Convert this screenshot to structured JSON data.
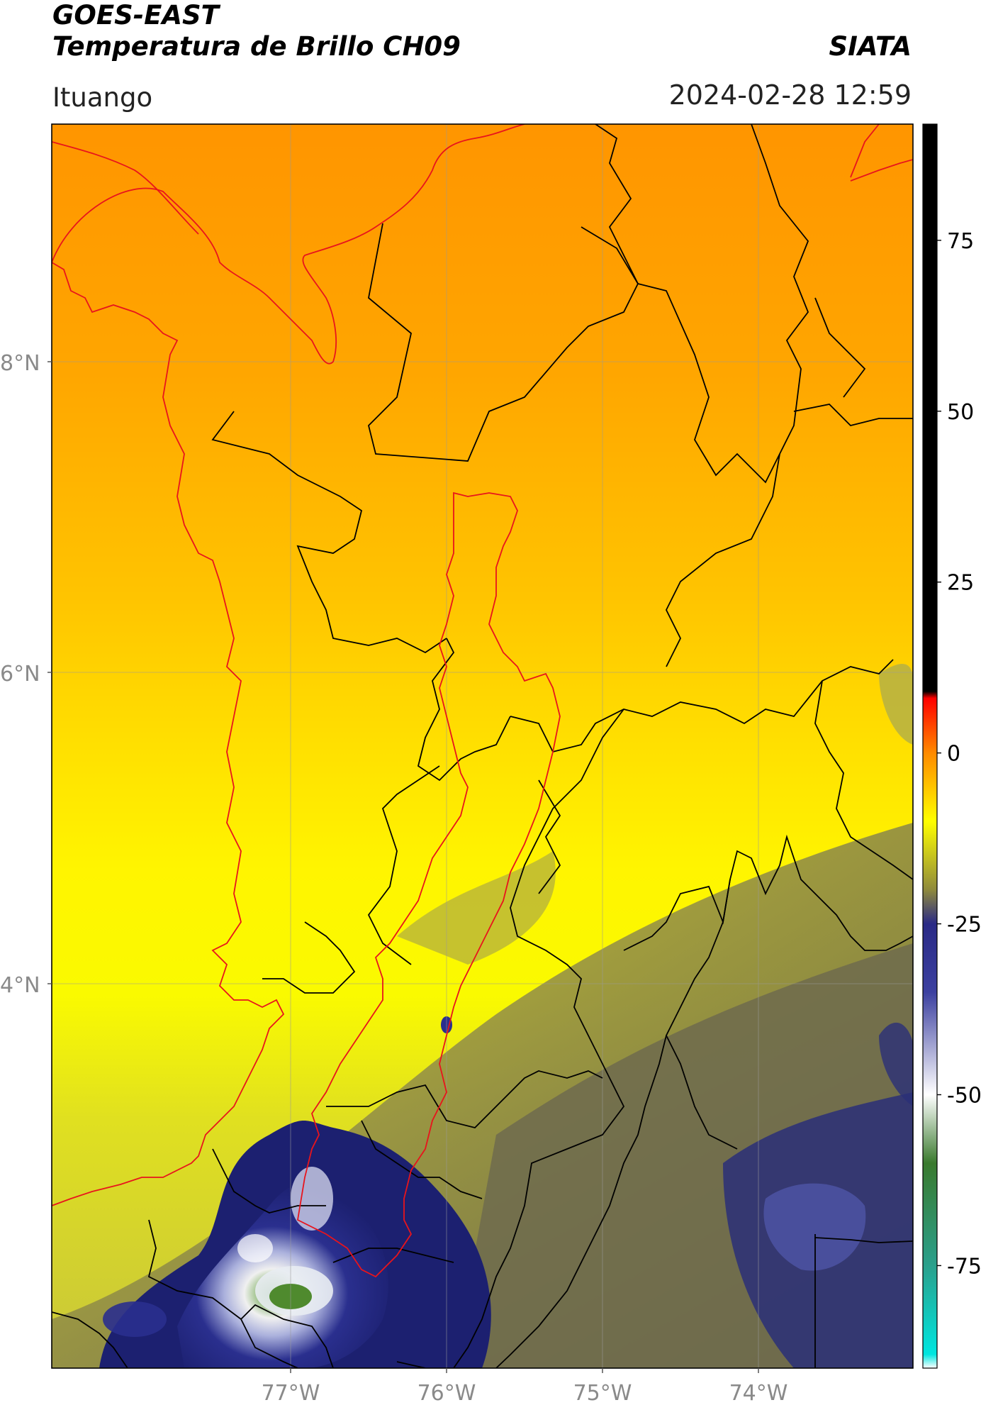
{
  "header": {
    "satellite": "GOES-EAST",
    "product": "Temperatura de Brillo CH09",
    "organization": "SIATA",
    "location": "Ituango",
    "datetime": "2024-02-28 12:59"
  },
  "map": {
    "lat_ticks": [
      "8°N",
      "6°N",
      "4°N"
    ],
    "lon_ticks": [
      "77°W",
      "76°W",
      "75°W",
      "74°W"
    ],
    "colors": {
      "warm_top": "#ff9500",
      "mid": "#ffdd00",
      "yellow": "#ffff00",
      "olive": "#b7b43c",
      "gray_olive": "#6f6c4c",
      "navy": "#1a1f7a",
      "light_blue": "#c9cbe8",
      "green": "#4f8a2e",
      "political_borders": "#000000",
      "basin_and_coast": "#e8141c"
    }
  },
  "colorbar": {
    "ticks": [
      "75",
      "50",
      "25",
      "0",
      "-25",
      "-50",
      "-75"
    ],
    "stops": [
      {
        "v": 92,
        "c": "#000000"
      },
      {
        "v": 9,
        "c": "#000000"
      },
      {
        "v": 8,
        "c": "#ff0000"
      },
      {
        "v": 0,
        "c": "#ff8a00"
      },
      {
        "v": -10,
        "c": "#ffff00"
      },
      {
        "v": -20,
        "c": "#8f8a3c"
      },
      {
        "v": -25,
        "c": "#2a2a86"
      },
      {
        "v": -35,
        "c": "#3c40a0"
      },
      {
        "v": -50,
        "c": "#ffffff"
      },
      {
        "v": -60,
        "c": "#3a7a2e"
      },
      {
        "v": -75,
        "c": "#2aa08c"
      },
      {
        "v": -88,
        "c": "#00e6e0"
      },
      {
        "v": -90,
        "c": "#ffffff"
      }
    ]
  }
}
